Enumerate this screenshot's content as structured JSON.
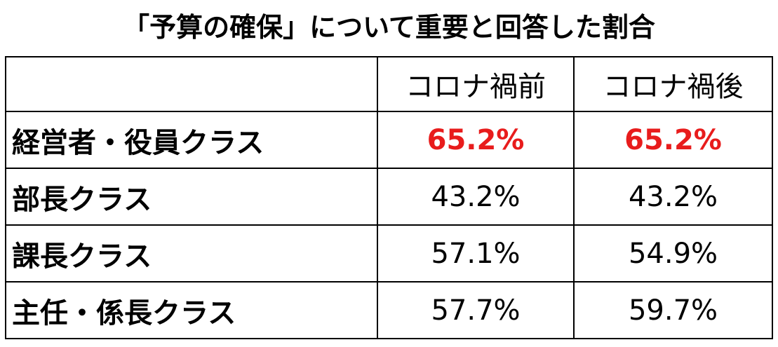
{
  "title": "「予算の確保」について重要と回答した割合",
  "chart_data": {
    "type": "table",
    "columns": [
      "",
      "コロナ禍前",
      "コロナ禍後"
    ],
    "rows": [
      {
        "label": "経営者・役員クラス",
        "before": "65.2%",
        "after": "65.2%",
        "highlight": true
      },
      {
        "label": "部長クラス",
        "before": "43.2%",
        "after": "43.2%",
        "highlight": false
      },
      {
        "label": "課長クラス",
        "before": "57.1%",
        "after": "54.9%",
        "highlight": false
      },
      {
        "label": "主任・係長クラス",
        "before": "57.7%",
        "after": "59.7%",
        "highlight": false
      }
    ],
    "highlight_color": "#e81c1c"
  }
}
